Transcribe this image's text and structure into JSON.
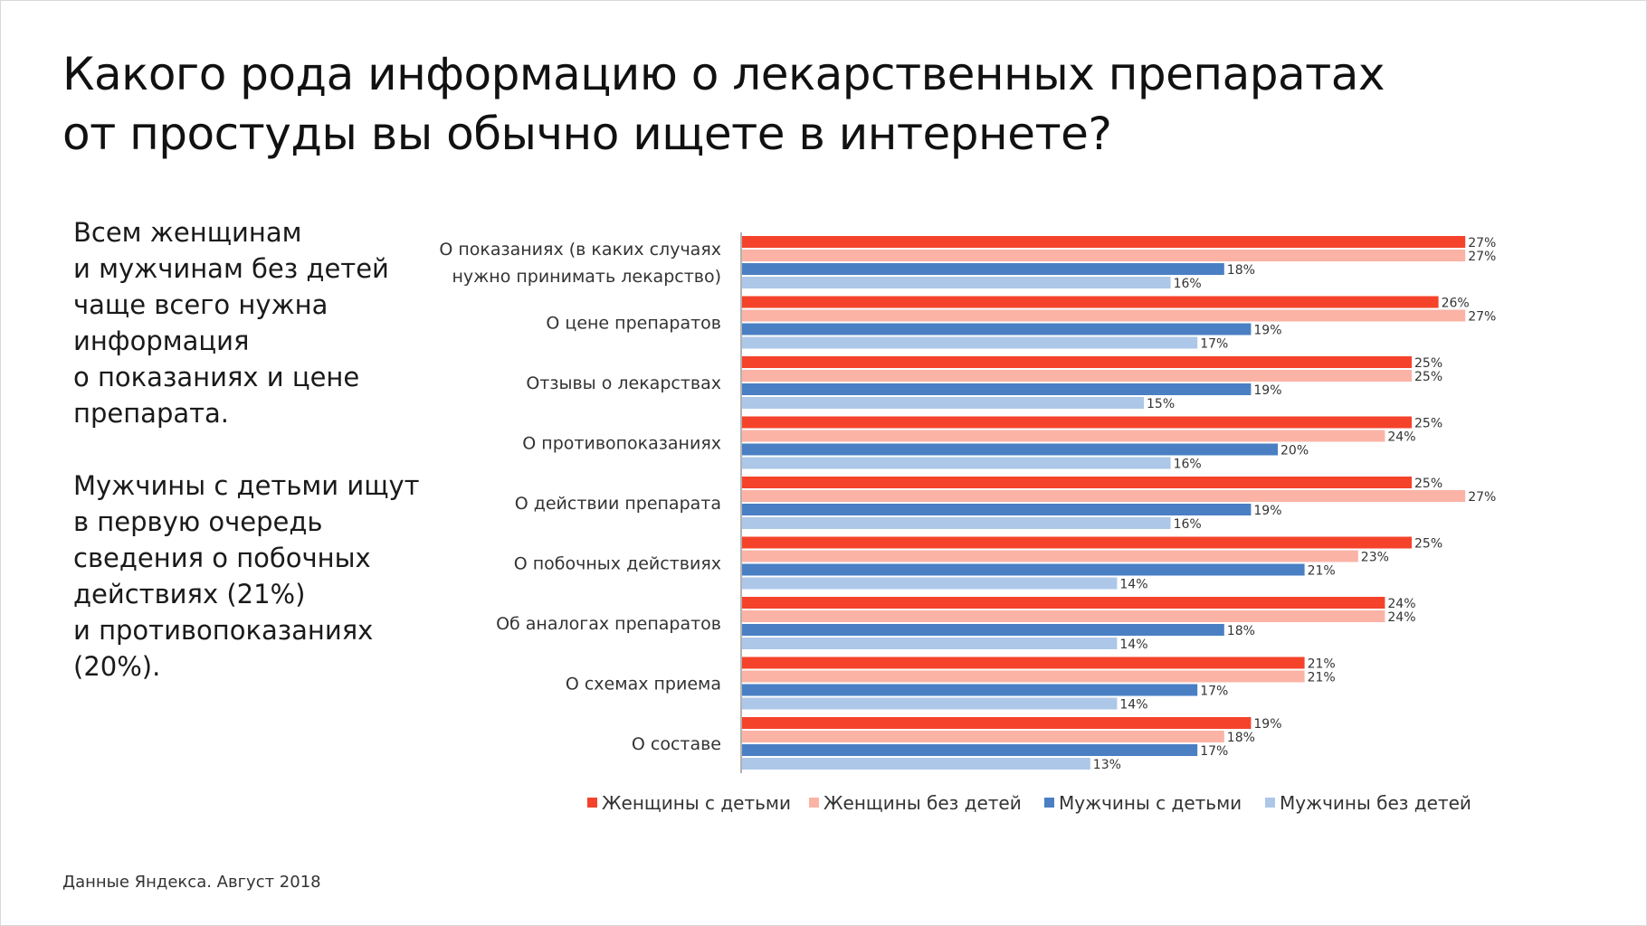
{
  "title_lines": [
    "Какого рода информацию о лекарственных препаратах",
    "от простуды вы обычно ищете в интернете?"
  ],
  "side_text": {
    "paragraph_1": [
      "Всем женщинам",
      "и мужчинам без детей",
      "чаще всего нужна",
      "информация",
      "о показаниях и цене",
      "препарата."
    ],
    "paragraph_2": [
      "Мужчины с детьми ищут",
      "в первую очередь",
      "сведения о побочных",
      "действиях (21%)",
      "и противопоказаниях",
      "(20%)."
    ]
  },
  "source_note": "Данные Яндекса. Август 2018",
  "chart_data": {
    "type": "bar",
    "orientation": "horizontal",
    "title": "",
    "xlabel": "",
    "ylabel": "",
    "xlim": [
      0,
      30
    ],
    "grid": false,
    "legend_position": "bottom",
    "value_suffix": "%",
    "categories": [
      "О показаниях (в каких случаях|нужно принимать лекарство)",
      "О цене препаратов",
      "Отзывы о лекарствах",
      "О противопоказаниях",
      "О действии препарата",
      "О побочных действиях",
      "Об аналогах препаратов",
      "О схемах приема",
      "О составе"
    ],
    "series": [
      {
        "name": "Женщины с детьми",
        "color": "#f4432a",
        "values": [
          27,
          26,
          25,
          25,
          25,
          25,
          24,
          21,
          19
        ]
      },
      {
        "name": "Женщины без детей",
        "color": "#fbb3a6",
        "values": [
          27,
          27,
          25,
          24,
          27,
          23,
          24,
          21,
          18
        ]
      },
      {
        "name": "Мужчины с детьми",
        "color": "#4a7fc4",
        "values": [
          18,
          19,
          19,
          20,
          19,
          21,
          18,
          17,
          17
        ]
      },
      {
        "name": "Мужчины без детей",
        "color": "#adc7e8",
        "values": [
          16,
          17,
          15,
          16,
          16,
          14,
          14,
          14,
          13
        ]
      }
    ]
  }
}
